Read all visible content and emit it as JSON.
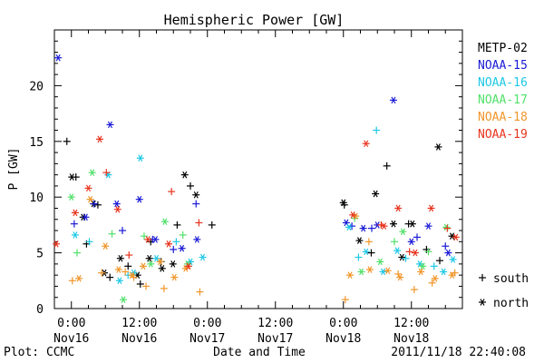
{
  "chart_data": {
    "type": "scatter",
    "title": "Hemispheric Power [GW]",
    "ylabel": "P [GW]",
    "xlabel": "Date and Time",
    "ylim": [
      0,
      25
    ],
    "xlim": [
      "2011-11-15T21:00",
      "2011-11-18T21:00"
    ],
    "yticks": [
      0,
      5,
      10,
      15,
      20
    ],
    "xticks": [
      {
        "t": "2011-11-16T00:00",
        "time": "0:00",
        "date": "Nov16"
      },
      {
        "t": "2011-11-16T12:00",
        "time": "12:00",
        "date": "Nov16"
      },
      {
        "t": "2011-11-17T00:00",
        "time": "0:00",
        "date": "Nov17"
      },
      {
        "t": "2011-11-17T12:00",
        "time": "12:00",
        "date": "Nov17"
      },
      {
        "t": "2011-11-18T00:00",
        "time": "0:00",
        "date": "Nov18"
      },
      {
        "t": "2011-11-18T12:00",
        "time": "12:00",
        "date": "Nov18"
      }
    ],
    "legend_position": "right",
    "marker_legend": [
      {
        "marker": "+",
        "label": "south"
      },
      {
        "marker": "*",
        "label": "north"
      }
    ],
    "series": [
      {
        "name": "METP-02",
        "color": "#000000",
        "south": [
          [
            "2011-11-15T23:12",
            15.0
          ],
          [
            "2011-11-16T00:48",
            11.8
          ],
          [
            "2011-11-16T02:40",
            5.8
          ],
          [
            "2011-11-16T04:40",
            9.3
          ],
          [
            "2011-11-16T06:48",
            2.8
          ],
          [
            "2011-11-16T10:00",
            3.8
          ],
          [
            "2011-11-16T12:10",
            2.2
          ],
          [
            "2011-11-16T14:00",
            6.0
          ],
          [
            "2011-11-16T15:48",
            4.2
          ],
          [
            "2011-11-16T18:40",
            7.5
          ],
          [
            "2011-11-16T21:00",
            11.0
          ],
          [
            "2011-11-17T00:48",
            7.5
          ],
          [
            "2011-11-18T00:10",
            9.3
          ],
          [
            "2011-11-18T04:55",
            5.0
          ],
          [
            "2011-11-18T07:40",
            12.8
          ],
          [
            "2011-11-18T11:30",
            7.6
          ],
          [
            "2011-11-18T14:40",
            5.3
          ],
          [
            "2011-11-18T17:00",
            4.3
          ]
        ],
        "north": [
          [
            "2011-11-16T00:05",
            11.8
          ],
          [
            "2011-11-16T02:05",
            8.2
          ],
          [
            "2011-11-16T03:55",
            9.4
          ],
          [
            "2011-11-16T05:48",
            3.2
          ],
          [
            "2011-11-16T08:40",
            4.5
          ],
          [
            "2011-11-16T11:40",
            3.0
          ],
          [
            "2011-11-16T13:45",
            4.5
          ],
          [
            "2011-11-16T16:00",
            3.6
          ],
          [
            "2011-11-16T17:55",
            4.0
          ],
          [
            "2011-11-16T20:00",
            12.0
          ],
          [
            "2011-11-16T22:00",
            10.2
          ],
          [
            "2011-11-18T00:00",
            9.5
          ],
          [
            "2011-11-18T02:50",
            6.1
          ],
          [
            "2011-11-18T05:40",
            10.3
          ],
          [
            "2011-11-18T08:50",
            7.6
          ],
          [
            "2011-11-18T10:20",
            4.6
          ],
          [
            "2011-11-18T12:10",
            7.6
          ],
          [
            "2011-11-18T16:45",
            14.5
          ],
          [
            "2011-11-18T19:10",
            6.5
          ]
        ]
      },
      {
        "name": "NOAA-15",
        "color": "#1a1ad6",
        "south": [
          [
            "2011-11-16T00:30",
            7.6
          ],
          [
            "2011-11-16T04:00",
            9.4
          ],
          [
            "2011-11-16T09:00",
            7.0
          ],
          [
            "2011-11-16T14:20",
            6.2
          ],
          [
            "2011-11-16T18:00",
            5.3
          ],
          [
            "2011-11-16T22:00",
            9.4
          ],
          [
            "2011-11-18T01:30",
            7.4
          ],
          [
            "2011-11-18T05:00",
            7.2
          ],
          [
            "2011-11-18T13:00",
            6.4
          ],
          [
            "2011-11-18T18:00",
            5.6
          ]
        ],
        "north": [
          [
            "2011-11-15T21:40",
            22.5
          ],
          [
            "2011-11-16T02:30",
            8.2
          ],
          [
            "2011-11-16T06:50",
            16.5
          ],
          [
            "2011-11-16T08:00",
            9.4
          ],
          [
            "2011-11-16T12:00",
            9.8
          ],
          [
            "2011-11-16T14:50",
            6.2
          ],
          [
            "2011-11-16T19:30",
            5.4
          ],
          [
            "2011-11-16T22:10",
            6.2
          ],
          [
            "2011-11-18T00:30",
            7.7
          ],
          [
            "2011-11-18T03:30",
            7.2
          ],
          [
            "2011-11-18T06:00",
            7.5
          ],
          [
            "2011-11-18T08:50",
            18.7
          ],
          [
            "2011-11-18T12:00",
            6.0
          ],
          [
            "2011-11-18T15:00",
            7.4
          ],
          [
            "2011-11-18T18:30",
            5.0
          ]
        ]
      },
      {
        "name": "NOAA-16",
        "color": "#1ec8e6",
        "south": [
          [
            "2011-11-16T03:10",
            6.0
          ],
          [
            "2011-11-16T10:00",
            3.0
          ],
          [
            "2011-11-16T18:30",
            6.0
          ],
          [
            "2011-11-18T02:40",
            4.6
          ],
          [
            "2011-11-18T05:50",
            16.0
          ],
          [
            "2011-11-18T11:00",
            4.5
          ],
          [
            "2011-11-18T16:00",
            3.8
          ]
        ],
        "north": [
          [
            "2011-11-16T00:40",
            6.6
          ],
          [
            "2011-11-16T06:30",
            12.0
          ],
          [
            "2011-11-16T08:30",
            2.5
          ],
          [
            "2011-11-16T11:00",
            3.2
          ],
          [
            "2011-11-16T12:10",
            13.5
          ],
          [
            "2011-11-16T15:00",
            4.5
          ],
          [
            "2011-11-16T21:00",
            4.2
          ],
          [
            "2011-11-16T23:10",
            4.6
          ],
          [
            "2011-11-18T01:00",
            7.3
          ],
          [
            "2011-11-18T04:00",
            5.1
          ],
          [
            "2011-11-18T07:00",
            3.3
          ],
          [
            "2011-11-18T09:30",
            5.2
          ],
          [
            "2011-11-18T13:30",
            4.0
          ],
          [
            "2011-11-18T17:40",
            3.3
          ],
          [
            "2011-11-18T19:20",
            4.4
          ]
        ]
      },
      {
        "name": "NOAA-17",
        "color": "#52e06a",
        "south": [
          [
            "2011-11-16T01:00",
            5.0
          ],
          [
            "2011-11-16T07:10",
            6.7
          ],
          [
            "2011-11-16T12:50",
            6.5
          ],
          [
            "2011-11-16T19:40",
            6.6
          ],
          [
            "2011-11-18T02:00",
            8.1
          ],
          [
            "2011-11-18T09:00",
            6.0
          ],
          [
            "2011-11-18T15:00",
            5.1
          ]
        ],
        "north": [
          [
            "2011-11-16T00:00",
            10.0
          ],
          [
            "2011-11-16T03:40",
            12.2
          ],
          [
            "2011-11-16T09:10",
            0.8
          ],
          [
            "2011-11-16T14:00",
            4.0
          ],
          [
            "2011-11-16T16:30",
            7.8
          ],
          [
            "2011-11-16T20:30",
            4.0
          ],
          [
            "2011-11-18T03:10",
            3.3
          ],
          [
            "2011-11-18T06:30",
            4.2
          ],
          [
            "2011-11-18T10:30",
            6.9
          ],
          [
            "2011-11-18T14:00",
            3.8
          ],
          [
            "2011-11-18T18:10",
            7.3
          ]
        ]
      },
      {
        "name": "NOAA-18",
        "color": "#f0962a",
        "south": [
          [
            "2011-11-16T00:10",
            2.5
          ],
          [
            "2011-11-16T05:20",
            3.2
          ],
          [
            "2011-11-16T09:30",
            3.3
          ],
          [
            "2011-11-16T11:00",
            2.8
          ],
          [
            "2011-11-16T13:10",
            2.0
          ],
          [
            "2011-11-16T16:20",
            1.8
          ],
          [
            "2011-11-16T22:40",
            1.5
          ],
          [
            "2011-11-18T00:20",
            0.8
          ],
          [
            "2011-11-18T04:30",
            6.0
          ],
          [
            "2011-11-18T09:40",
            3.1
          ],
          [
            "2011-11-18T12:30",
            1.7
          ],
          [
            "2011-11-18T15:40",
            2.3
          ],
          [
            "2011-11-18T19:40",
            3.2
          ]
        ],
        "north": [
          [
            "2011-11-16T01:20",
            2.7
          ],
          [
            "2011-11-16T03:20",
            9.8
          ],
          [
            "2011-11-16T06:00",
            5.6
          ],
          [
            "2011-11-16T08:20",
            3.5
          ],
          [
            "2011-11-16T10:40",
            3.0
          ],
          [
            "2011-11-16T12:40",
            3.8
          ],
          [
            "2011-11-16T15:40",
            4.2
          ],
          [
            "2011-11-16T18:10",
            2.8
          ],
          [
            "2011-11-16T20:10",
            3.6
          ],
          [
            "2011-11-18T01:10",
            3.0
          ],
          [
            "2011-11-18T02:10",
            8.3
          ],
          [
            "2011-11-18T04:40",
            3.5
          ],
          [
            "2011-11-18T07:50",
            3.4
          ],
          [
            "2011-11-18T10:00",
            2.8
          ],
          [
            "2011-11-18T13:40",
            3.3
          ],
          [
            "2011-11-18T16:10",
            2.7
          ],
          [
            "2011-11-18T19:10",
            3.0
          ]
        ]
      },
      {
        "name": "NOAA-19",
        "color": "#e8341e",
        "south": [
          [
            "2011-11-16T06:10",
            12.2
          ],
          [
            "2011-11-16T10:10",
            4.8
          ],
          [
            "2011-11-16T17:40",
            10.5
          ],
          [
            "2011-11-16T22:30",
            7.7
          ],
          [
            "2011-11-18T06:40",
            7.5
          ],
          [
            "2011-11-18T11:40",
            5.1
          ],
          [
            "2011-11-18T18:20",
            7.2
          ]
        ],
        "north": [
          [
            "2011-11-15T21:20",
            5.8
          ],
          [
            "2011-11-16T00:40",
            8.6
          ],
          [
            "2011-11-16T03:00",
            10.8
          ],
          [
            "2011-11-16T05:00",
            15.2
          ],
          [
            "2011-11-16T08:10",
            8.9
          ],
          [
            "2011-11-16T13:30",
            6.2
          ],
          [
            "2011-11-16T17:10",
            5.8
          ],
          [
            "2011-11-16T20:40",
            3.8
          ],
          [
            "2011-11-18T01:40",
            8.4
          ],
          [
            "2011-11-18T04:00",
            14.8
          ],
          [
            "2011-11-18T07:10",
            7.4
          ],
          [
            "2011-11-18T09:40",
            9.0
          ],
          [
            "2011-11-18T12:40",
            5.0
          ],
          [
            "2011-11-18T15:30",
            9.0
          ],
          [
            "2011-11-18T19:50",
            6.4
          ]
        ]
      }
    ]
  },
  "footer": {
    "left": "Plot: CCMC",
    "right": "2011/11/18 22:40:08"
  }
}
